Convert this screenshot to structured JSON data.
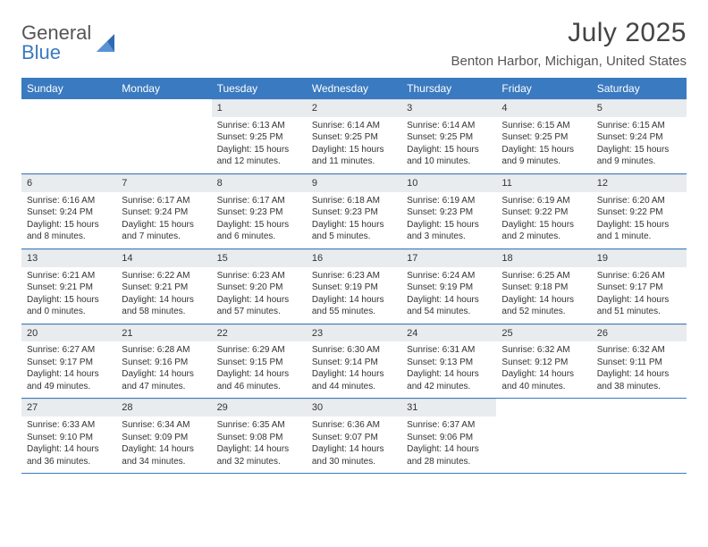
{
  "brand": {
    "name1": "General",
    "name2": "Blue"
  },
  "title": "July 2025",
  "location": "Benton Harbor, Michigan, United States",
  "colors": {
    "accent": "#3a7ac0",
    "header_bg": "#e9ecef",
    "text": "#333333"
  },
  "weekdays": [
    "Sunday",
    "Monday",
    "Tuesday",
    "Wednesday",
    "Thursday",
    "Friday",
    "Saturday"
  ],
  "weeks": [
    [
      null,
      null,
      {
        "n": "1",
        "sr": "Sunrise: 6:13 AM",
        "ss": "Sunset: 9:25 PM",
        "d1": "Daylight: 15 hours",
        "d2": "and 12 minutes."
      },
      {
        "n": "2",
        "sr": "Sunrise: 6:14 AM",
        "ss": "Sunset: 9:25 PM",
        "d1": "Daylight: 15 hours",
        "d2": "and 11 minutes."
      },
      {
        "n": "3",
        "sr": "Sunrise: 6:14 AM",
        "ss": "Sunset: 9:25 PM",
        "d1": "Daylight: 15 hours",
        "d2": "and 10 minutes."
      },
      {
        "n": "4",
        "sr": "Sunrise: 6:15 AM",
        "ss": "Sunset: 9:25 PM",
        "d1": "Daylight: 15 hours",
        "d2": "and 9 minutes."
      },
      {
        "n": "5",
        "sr": "Sunrise: 6:15 AM",
        "ss": "Sunset: 9:24 PM",
        "d1": "Daylight: 15 hours",
        "d2": "and 9 minutes."
      }
    ],
    [
      {
        "n": "6",
        "sr": "Sunrise: 6:16 AM",
        "ss": "Sunset: 9:24 PM",
        "d1": "Daylight: 15 hours",
        "d2": "and 8 minutes."
      },
      {
        "n": "7",
        "sr": "Sunrise: 6:17 AM",
        "ss": "Sunset: 9:24 PM",
        "d1": "Daylight: 15 hours",
        "d2": "and 7 minutes."
      },
      {
        "n": "8",
        "sr": "Sunrise: 6:17 AM",
        "ss": "Sunset: 9:23 PM",
        "d1": "Daylight: 15 hours",
        "d2": "and 6 minutes."
      },
      {
        "n": "9",
        "sr": "Sunrise: 6:18 AM",
        "ss": "Sunset: 9:23 PM",
        "d1": "Daylight: 15 hours",
        "d2": "and 5 minutes."
      },
      {
        "n": "10",
        "sr": "Sunrise: 6:19 AM",
        "ss": "Sunset: 9:23 PM",
        "d1": "Daylight: 15 hours",
        "d2": "and 3 minutes."
      },
      {
        "n": "11",
        "sr": "Sunrise: 6:19 AM",
        "ss": "Sunset: 9:22 PM",
        "d1": "Daylight: 15 hours",
        "d2": "and 2 minutes."
      },
      {
        "n": "12",
        "sr": "Sunrise: 6:20 AM",
        "ss": "Sunset: 9:22 PM",
        "d1": "Daylight: 15 hours",
        "d2": "and 1 minute."
      }
    ],
    [
      {
        "n": "13",
        "sr": "Sunrise: 6:21 AM",
        "ss": "Sunset: 9:21 PM",
        "d1": "Daylight: 15 hours",
        "d2": "and 0 minutes."
      },
      {
        "n": "14",
        "sr": "Sunrise: 6:22 AM",
        "ss": "Sunset: 9:21 PM",
        "d1": "Daylight: 14 hours",
        "d2": "and 58 minutes."
      },
      {
        "n": "15",
        "sr": "Sunrise: 6:23 AM",
        "ss": "Sunset: 9:20 PM",
        "d1": "Daylight: 14 hours",
        "d2": "and 57 minutes."
      },
      {
        "n": "16",
        "sr": "Sunrise: 6:23 AM",
        "ss": "Sunset: 9:19 PM",
        "d1": "Daylight: 14 hours",
        "d2": "and 55 minutes."
      },
      {
        "n": "17",
        "sr": "Sunrise: 6:24 AM",
        "ss": "Sunset: 9:19 PM",
        "d1": "Daylight: 14 hours",
        "d2": "and 54 minutes."
      },
      {
        "n": "18",
        "sr": "Sunrise: 6:25 AM",
        "ss": "Sunset: 9:18 PM",
        "d1": "Daylight: 14 hours",
        "d2": "and 52 minutes."
      },
      {
        "n": "19",
        "sr": "Sunrise: 6:26 AM",
        "ss": "Sunset: 9:17 PM",
        "d1": "Daylight: 14 hours",
        "d2": "and 51 minutes."
      }
    ],
    [
      {
        "n": "20",
        "sr": "Sunrise: 6:27 AM",
        "ss": "Sunset: 9:17 PM",
        "d1": "Daylight: 14 hours",
        "d2": "and 49 minutes."
      },
      {
        "n": "21",
        "sr": "Sunrise: 6:28 AM",
        "ss": "Sunset: 9:16 PM",
        "d1": "Daylight: 14 hours",
        "d2": "and 47 minutes."
      },
      {
        "n": "22",
        "sr": "Sunrise: 6:29 AM",
        "ss": "Sunset: 9:15 PM",
        "d1": "Daylight: 14 hours",
        "d2": "and 46 minutes."
      },
      {
        "n": "23",
        "sr": "Sunrise: 6:30 AM",
        "ss": "Sunset: 9:14 PM",
        "d1": "Daylight: 14 hours",
        "d2": "and 44 minutes."
      },
      {
        "n": "24",
        "sr": "Sunrise: 6:31 AM",
        "ss": "Sunset: 9:13 PM",
        "d1": "Daylight: 14 hours",
        "d2": "and 42 minutes."
      },
      {
        "n": "25",
        "sr": "Sunrise: 6:32 AM",
        "ss": "Sunset: 9:12 PM",
        "d1": "Daylight: 14 hours",
        "d2": "and 40 minutes."
      },
      {
        "n": "26",
        "sr": "Sunrise: 6:32 AM",
        "ss": "Sunset: 9:11 PM",
        "d1": "Daylight: 14 hours",
        "d2": "and 38 minutes."
      }
    ],
    [
      {
        "n": "27",
        "sr": "Sunrise: 6:33 AM",
        "ss": "Sunset: 9:10 PM",
        "d1": "Daylight: 14 hours",
        "d2": "and 36 minutes."
      },
      {
        "n": "28",
        "sr": "Sunrise: 6:34 AM",
        "ss": "Sunset: 9:09 PM",
        "d1": "Daylight: 14 hours",
        "d2": "and 34 minutes."
      },
      {
        "n": "29",
        "sr": "Sunrise: 6:35 AM",
        "ss": "Sunset: 9:08 PM",
        "d1": "Daylight: 14 hours",
        "d2": "and 32 minutes."
      },
      {
        "n": "30",
        "sr": "Sunrise: 6:36 AM",
        "ss": "Sunset: 9:07 PM",
        "d1": "Daylight: 14 hours",
        "d2": "and 30 minutes."
      },
      {
        "n": "31",
        "sr": "Sunrise: 6:37 AM",
        "ss": "Sunset: 9:06 PM",
        "d1": "Daylight: 14 hours",
        "d2": "and 28 minutes."
      },
      null,
      null
    ]
  ]
}
